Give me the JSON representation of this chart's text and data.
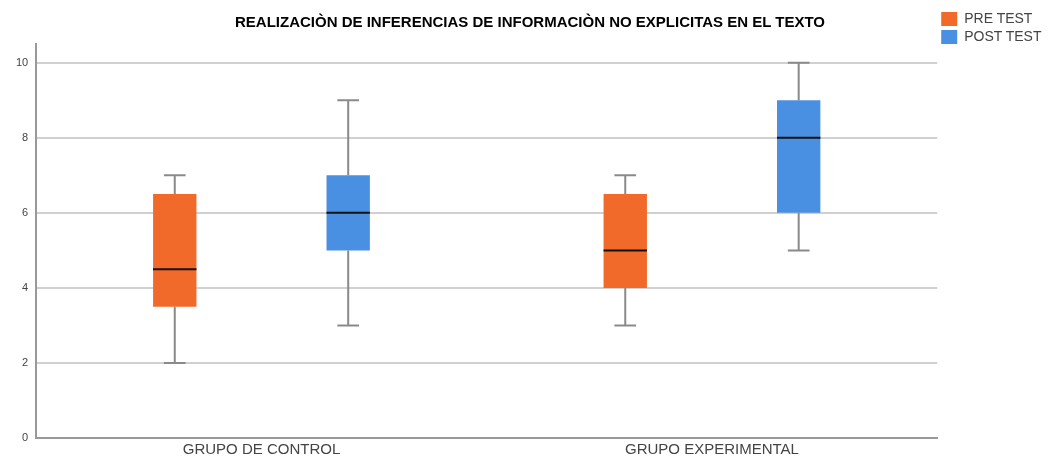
{
  "chart_data": {
    "type": "box",
    "title": "REALIZACIÒN DE INFERENCIAS DE INFORMACIÒN NO EXPLICITAS EN EL TEXTO",
    "categories": [
      "GRUPO DE CONTROL",
      "GRUPO EXPERIMENTAL"
    ],
    "series": [
      {
        "name": "PRE TEST",
        "color": "#f26a2a",
        "boxes": [
          {
            "low": 2,
            "q1": 3.5,
            "median": 4.5,
            "q3": 6.5,
            "high": 7
          },
          {
            "low": 3,
            "q1": 4,
            "median": 5,
            "q3": 6.5,
            "high": 7
          }
        ]
      },
      {
        "name": "POST TEST",
        "color": "#4a90e2",
        "boxes": [
          {
            "low": 3,
            "q1": 5,
            "median": 6,
            "q3": 7,
            "high": 9
          },
          {
            "low": 5,
            "q1": 6,
            "median": 8,
            "q3": 9,
            "high": 10
          }
        ]
      }
    ],
    "ylim": [
      0,
      10.5
    ],
    "yticks": [
      0,
      2,
      4,
      6,
      8,
      10
    ],
    "grid": "y",
    "legend": "top right"
  }
}
